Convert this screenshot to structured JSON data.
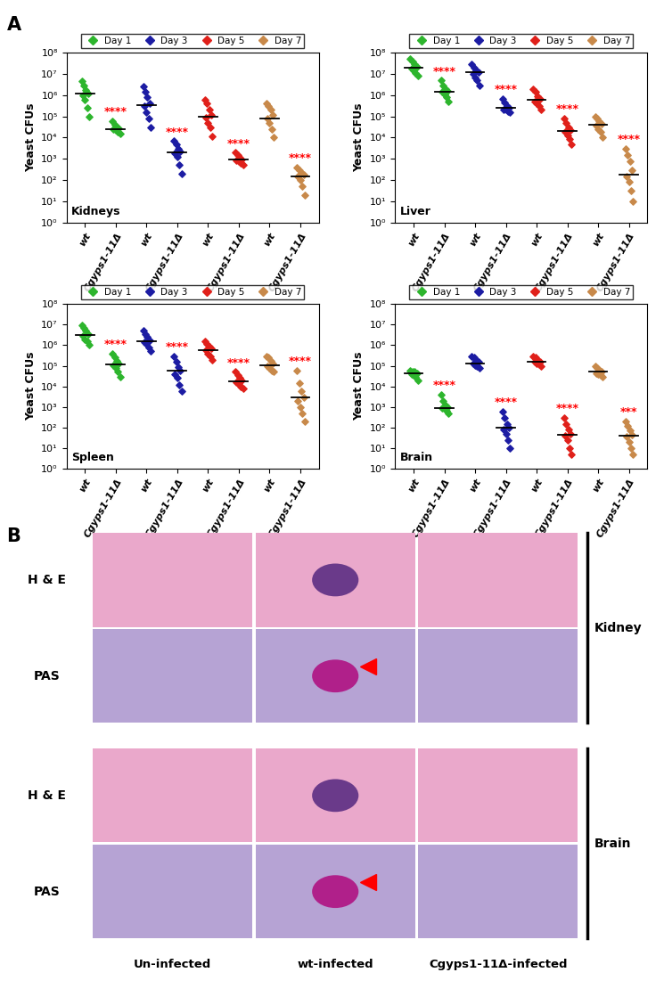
{
  "panel_labels": [
    "A",
    "B"
  ],
  "chart_data": [
    {
      "type": "scatter",
      "label": "Kidneys",
      "y_label": "Yeast CFUs",
      "log": "y",
      "ylim": [
        1,
        100000000
      ],
      "yticks": [
        {
          "value": 1,
          "label": "10⁰"
        },
        {
          "value": 10,
          "label": "10¹"
        },
        {
          "value": 100,
          "label": "10²"
        },
        {
          "value": 1000,
          "label": "10³"
        },
        {
          "value": 10000,
          "label": "10⁴"
        },
        {
          "value": 100000,
          "label": "10⁵"
        },
        {
          "value": 1000000,
          "label": "10⁶"
        },
        {
          "value": 10000000,
          "label": "10⁷"
        },
        {
          "value": 100000000,
          "label": "10⁸"
        }
      ],
      "legend": "top",
      "categories": [
        "wt",
        "Cgyps1-11Δ",
        "wt",
        "Cgyps1-11Δ",
        "wt",
        "Cgyps1-11Δ",
        "wt",
        "Cgyps1-11Δ"
      ],
      "significance": [
        null,
        "****",
        null,
        "****",
        null,
        "****",
        null,
        "****"
      ],
      "series": [
        {
          "name": "Day 1",
          "color": "#2db52d",
          "marker": "diamond",
          "values": [
            [
              4500000,
              3000000,
              1800000,
              1200000,
              1000000,
              600000,
              250000,
              100000
            ],
            [
              60000,
              40000,
              30000,
              27000,
              25000,
              22000,
              18000,
              15000
            ],
            null,
            null,
            null,
            null,
            null,
            null
          ],
          "medians": [
            1200000,
            25000,
            null,
            null,
            null,
            null,
            null,
            null
          ]
        },
        {
          "name": "Day 3",
          "color": "#1c1ca3",
          "marker": "diamond",
          "values": [
            null,
            null,
            [
              2500000,
              1500000,
              800000,
              400000,
              300000,
              150000,
              80000,
              30000
            ],
            [
              7000,
              5000,
              3000,
              2200,
              1800,
              1200,
              500,
              200
            ],
            null,
            null,
            null,
            null
          ],
          "medians": [
            null,
            null,
            350000,
            2000,
            null,
            null,
            null,
            null
          ]
        },
        {
          "name": "Day 5",
          "color": "#e0201a",
          "marker": "diamond",
          "values": [
            null,
            null,
            null,
            null,
            [
              600000,
              400000,
              200000,
              120000,
              90000,
              50000,
              30000,
              12000
            ],
            [
              2000,
              1500,
              1100,
              950,
              850,
              750,
              600,
              500
            ],
            null,
            null
          ],
          "medians": [
            null,
            null,
            null,
            null,
            100000,
            900,
            null,
            null
          ]
        },
        {
          "name": "Day 7",
          "color": "#c8894a",
          "marker": "diamond",
          "values": [
            null,
            null,
            null,
            null,
            null,
            null,
            [
              400000,
              300000,
              200000,
              120000,
              80000,
              50000,
              25000,
              10000
            ],
            [
              400,
              300,
              220,
              180,
              150,
              100,
              50,
              20
            ]
          ],
          "medians": [
            null,
            null,
            null,
            null,
            null,
            null,
            80000,
            150
          ]
        }
      ]
    },
    {
      "type": "scatter",
      "label": "Liver",
      "y_label": "Yeast CFUs",
      "log": "y",
      "ylim": [
        1,
        100000000
      ],
      "yticks": [
        {
          "value": 1,
          "label": "10⁰"
        },
        {
          "value": 10,
          "label": "10¹"
        },
        {
          "value": 100,
          "label": "10²"
        },
        {
          "value": 1000,
          "label": "10³"
        },
        {
          "value": 10000,
          "label": "10⁴"
        },
        {
          "value": 100000,
          "label": "10⁵"
        },
        {
          "value": 1000000,
          "label": "10⁶"
        },
        {
          "value": 10000000,
          "label": "10⁷"
        },
        {
          "value": 100000000,
          "label": "10⁸"
        }
      ],
      "legend": "top",
      "categories": [
        "wt",
        "Cgyps1-11Δ",
        "wt",
        "Cgyps1-11Δ",
        "wt",
        "Cgyps1-11Δ",
        "wt",
        "Cgyps1-11Δ"
      ],
      "significance": [
        null,
        "****",
        null,
        "****",
        null,
        "****",
        null,
        "****"
      ],
      "series": [
        {
          "name": "Day 1",
          "color": "#2db52d",
          "marker": "diamond",
          "values": [
            [
              50000000,
              40000000,
              30000000,
              22000000,
              18000000,
              15000000,
              11000000,
              8000000
            ],
            [
              5000000,
              3000000,
              2000000,
              1600000,
              1400000,
              1100000,
              800000,
              500000
            ],
            null,
            null,
            null,
            null,
            null,
            null
          ],
          "medians": [
            20000000,
            1500000,
            null,
            null,
            null,
            null,
            null,
            null
          ]
        },
        {
          "name": "Day 3",
          "color": "#1c1ca3",
          "marker": "diamond",
          "values": [
            null,
            null,
            [
              30000000,
              20000000,
              15000000,
              12000000,
              10000000,
              7000000,
              5000000,
              3000000
            ],
            [
              700000,
              450000,
              300000,
              250000,
              220000,
              200000,
              170000,
              150000
            ],
            null,
            null,
            null,
            null
          ],
          "medians": [
            null,
            null,
            12000000,
            250000,
            null,
            null,
            null,
            null
          ]
        },
        {
          "name": "Day 5",
          "color": "#e0201a",
          "marker": "diamond",
          "values": [
            null,
            null,
            null,
            null,
            [
              2000000,
              1500000,
              900000,
              650000,
              500000,
              400000,
              300000,
              200000
            ],
            [
              80000,
              50000,
              30000,
              22000,
              18000,
              13000,
              9000,
              5000
            ],
            null,
            null
          ],
          "medians": [
            null,
            null,
            null,
            null,
            600000,
            20000,
            null,
            null
          ]
        },
        {
          "name": "Day 7",
          "color": "#c8894a",
          "marker": "diamond",
          "values": [
            null,
            null,
            null,
            null,
            null,
            null,
            [
              100000,
              80000,
              60000,
              45000,
              35000,
              25000,
              18000,
              10000
            ],
            [
              3000,
              1500,
              800,
              300,
              150,
              80,
              30,
              10
            ]
          ],
          "medians": [
            null,
            null,
            null,
            null,
            null,
            null,
            40000,
            180
          ]
        }
      ]
    },
    {
      "type": "scatter",
      "label": "Spleen",
      "y_label": "Yeast CFUs",
      "log": "y",
      "ylim": [
        1,
        100000000
      ],
      "yticks": [
        {
          "value": 1,
          "label": "10⁰"
        },
        {
          "value": 10,
          "label": "10¹"
        },
        {
          "value": 100,
          "label": "10²"
        },
        {
          "value": 1000,
          "label": "10³"
        },
        {
          "value": 10000,
          "label": "10⁴"
        },
        {
          "value": 100000,
          "label": "10⁵"
        },
        {
          "value": 1000000,
          "label": "10⁶"
        },
        {
          "value": 10000000,
          "label": "10⁷"
        },
        {
          "value": 100000000,
          "label": "10⁸"
        }
      ],
      "legend": "top",
      "categories": [
        "wt",
        "Cgyps1-11Δ",
        "wt",
        "Cgyps1-11Δ",
        "wt",
        "Cgyps1-11Δ",
        "wt",
        "Cgyps1-11Δ"
      ],
      "significance": [
        null,
        "****",
        null,
        "****",
        null,
        "****",
        null,
        "****"
      ],
      "series": [
        {
          "name": "Day 1",
          "color": "#2db52d",
          "marker": "diamond",
          "values": [
            [
              9000000,
              7000000,
              5000000,
              3500000,
              2800000,
              2000000,
              1500000,
              1000000
            ],
            [
              400000,
              250000,
              180000,
              130000,
              110000,
              80000,
              50000,
              30000
            ],
            null,
            null,
            null,
            null,
            null,
            null
          ],
          "medians": [
            3000000,
            120000,
            null,
            null,
            null,
            null,
            null,
            null
          ]
        },
        {
          "name": "Day 3",
          "color": "#1c1ca3",
          "marker": "diamond",
          "values": [
            null,
            null,
            [
              5000000,
              3500000,
              2500000,
              1800000,
              1400000,
              1100000,
              800000,
              500000
            ],
            [
              300000,
              150000,
              90000,
              60000,
              40000,
              25000,
              12000,
              6000
            ],
            null,
            null,
            null,
            null
          ],
          "medians": [
            null,
            null,
            1500000,
            60000,
            null,
            null,
            null,
            null
          ]
        },
        {
          "name": "Day 5",
          "color": "#e0201a",
          "marker": "diamond",
          "values": [
            null,
            null,
            null,
            null,
            [
              1500000,
              1200000,
              900000,
              700000,
              550000,
              400000,
              300000,
              200000
            ],
            [
              50000,
              35000,
              25000,
              20000,
              16000,
              13000,
              10000,
              8000
            ],
            null,
            null
          ],
          "medians": [
            null,
            null,
            null,
            null,
            600000,
            18000,
            null,
            null
          ]
        },
        {
          "name": "Day 7",
          "color": "#c8894a",
          "marker": "diamond",
          "values": [
            null,
            null,
            null,
            null,
            null,
            null,
            [
              300000,
              250000,
              180000,
              130000,
              100000,
              80000,
              60000,
              50000
            ],
            [
              60000,
              15000,
              6000,
              3000,
              2000,
              1000,
              500,
              200
            ]
          ],
          "medians": [
            null,
            null,
            null,
            null,
            null,
            null,
            110000,
            2800
          ]
        }
      ]
    },
    {
      "type": "scatter",
      "label": "Brain",
      "y_label": "Yeast CFUs",
      "log": "y",
      "ylim": [
        1,
        100000000
      ],
      "yticks": [
        {
          "value": 1,
          "label": "10⁰"
        },
        {
          "value": 10,
          "label": "10¹"
        },
        {
          "value": 100,
          "label": "10²"
        },
        {
          "value": 1000,
          "label": "10³"
        },
        {
          "value": 10000,
          "label": "10⁴"
        },
        {
          "value": 100000,
          "label": "10⁵"
        },
        {
          "value": 1000000,
          "label": "10⁶"
        },
        {
          "value": 10000000,
          "label": "10⁷"
        },
        {
          "value": 100000000,
          "label": "10⁸"
        }
      ],
      "legend": "top",
      "categories": [
        "wt",
        "Cgyps1-11Δ",
        "wt",
        "Cgyps1-11Δ",
        "wt",
        "Cgyps1-11Δ",
        "wt",
        "Cgyps1-11Δ"
      ],
      "significance": [
        null,
        "****",
        null,
        "****",
        null,
        "****",
        null,
        "***"
      ],
      "series": [
        {
          "name": "Day 1",
          "color": "#2db52d",
          "marker": "diamond",
          "values": [
            [
              60000,
              55000,
              50000,
              45000,
              40000,
              35000,
              28000,
              20000
            ],
            [
              4000,
              2000,
              1200,
              1000,
              900,
              800,
              650,
              500
            ],
            null,
            null,
            null,
            null,
            null,
            null
          ],
          "medians": [
            45000,
            900,
            null,
            null,
            null,
            null,
            null,
            null
          ]
        },
        {
          "name": "Day 3",
          "color": "#1c1ca3",
          "marker": "diamond",
          "values": [
            null,
            null,
            [
              300000,
              250000,
              200000,
              150000,
              130000,
              110000,
              95000,
              80000
            ],
            [
              600,
              300,
              150,
              100,
              80,
              50,
              25,
              10
            ],
            null,
            null,
            null,
            null
          ],
          "medians": [
            null,
            null,
            130000,
            100,
            null,
            null,
            null,
            null
          ]
        },
        {
          "name": "Day 5",
          "color": "#e0201a",
          "marker": "diamond",
          "values": [
            null,
            null,
            null,
            null,
            [
              300000,
              250000,
              200000,
              160000,
              150000,
              130000,
              120000,
              100000
            ],
            [
              300,
              150,
              80,
              50,
              40,
              25,
              10,
              5
            ],
            null,
            null
          ],
          "medians": [
            null,
            null,
            null,
            null,
            150000,
            45,
            null,
            null
          ]
        },
        {
          "name": "Day 7",
          "color": "#c8894a",
          "marker": "diamond",
          "values": [
            null,
            null,
            null,
            null,
            null,
            null,
            [
              100000,
              80000,
              65000,
              55000,
              45000,
              40000,
              35000,
              30000
            ],
            [
              200,
              120,
              70,
              45,
              35,
              20,
              10,
              5
            ]
          ],
          "medians": [
            null,
            null,
            null,
            null,
            null,
            null,
            50000,
            40
          ]
        }
      ]
    }
  ],
  "histology": {
    "row_labels": [
      "H & E",
      "PAS",
      "H & E",
      "PAS"
    ],
    "groups": [
      "Kidney",
      "Brain"
    ],
    "columns": [
      "Un-infected",
      "wt-infected",
      "Cgyps1-11Δ-infected"
    ]
  }
}
